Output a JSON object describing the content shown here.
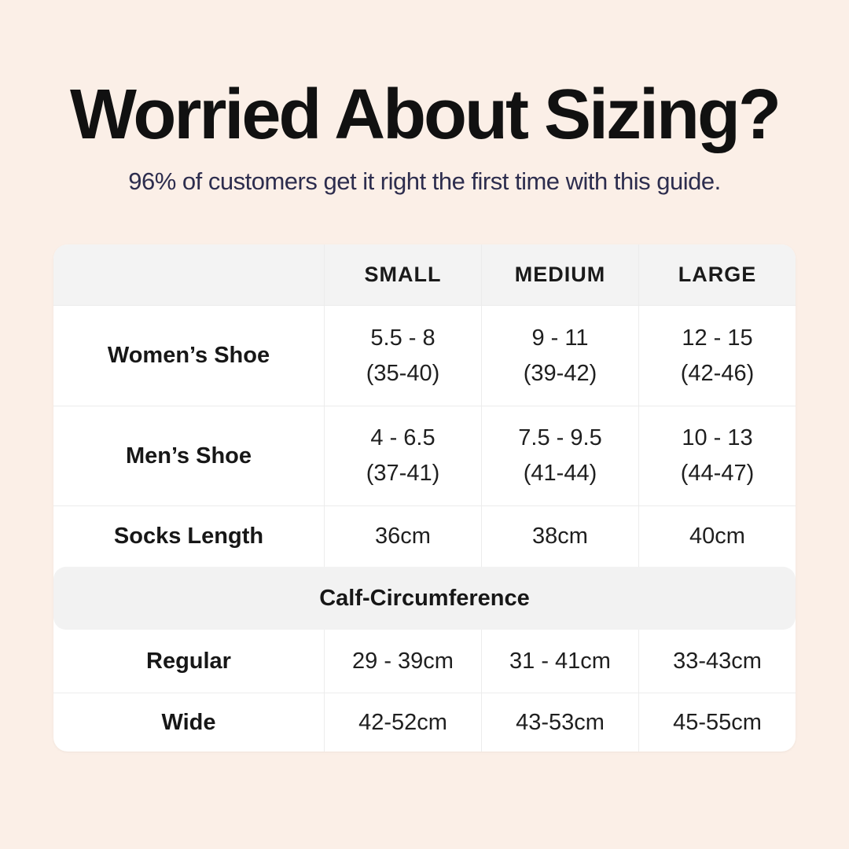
{
  "header": {
    "title": "Worried About Sizing?",
    "subtitle": "96% of customers get it right the first time with this guide."
  },
  "colors": {
    "page_background": "#FBEFE7",
    "title_text": "#111111",
    "subtitle_text": "#2D2D4E",
    "card_background": "#FFFFFF",
    "header_row_background": "#F3F3F3",
    "section_band_background": "#F2F2F2",
    "divider": "#ECECEC",
    "table_text": "#1F1F1F"
  },
  "chart_data": {
    "type": "table",
    "title": "Worried About Sizing?",
    "subtitle": "96% of customers get it right the first time with this guide.",
    "columns": [
      "",
      "SMALL",
      "MEDIUM",
      "LARGE"
    ],
    "rows": [
      [
        "Women’s Shoe",
        "5.5 - 8 (35-40)",
        "9 - 11 (39-42)",
        "12 - 15 (42-46)"
      ],
      [
        "Men’s Shoe",
        "4 - 6.5 (37-41)",
        "7.5 - 9.5 (41-44)",
        "10 - 13 (44-47)"
      ],
      [
        "Socks Length",
        "36cm",
        "38cm",
        "40cm"
      ],
      [
        "Calf-Circumference",
        "",
        "",
        ""
      ],
      [
        "Regular",
        "29 - 39cm",
        "31 - 41cm",
        "33-43cm"
      ],
      [
        "Wide",
        "42-52cm",
        "43-53cm",
        "45-55cm"
      ]
    ]
  },
  "table": {
    "columns": [
      "SMALL",
      "MEDIUM",
      "LARGE"
    ],
    "rows": [
      {
        "label": "Women’s Shoe",
        "values": [
          {
            "line1": "5.5 - 8",
            "line2": "(35-40)"
          },
          {
            "line1": "9 - 11",
            "line2": "(39-42)"
          },
          {
            "line1": "12 - 15",
            "line2": "(42-46)"
          }
        ]
      },
      {
        "label": "Men’s Shoe",
        "values": [
          {
            "line1": "4 - 6.5",
            "line2": "(37-41)"
          },
          {
            "line1": "7.5 - 9.5",
            "line2": "(41-44)"
          },
          {
            "line1": "10 - 13",
            "line2": "(44-47)"
          }
        ]
      },
      {
        "label": "Socks Length",
        "values": [
          {
            "line1": "36cm"
          },
          {
            "line1": "38cm"
          },
          {
            "line1": "40cm"
          }
        ]
      }
    ],
    "section_header": "Calf-Circumference",
    "calf_rows": [
      {
        "label": "Regular",
        "values": [
          "29 - 39cm",
          "31 - 41cm",
          "33-43cm"
        ]
      },
      {
        "label": "Wide",
        "values": [
          "42-52cm",
          "43-53cm",
          "45-55cm"
        ]
      }
    ]
  }
}
